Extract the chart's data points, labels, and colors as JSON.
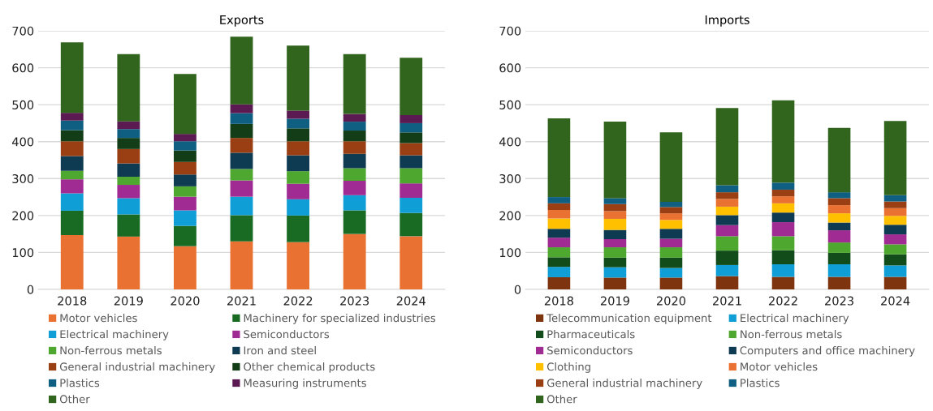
{
  "chart_data": [
    {
      "type": "bar",
      "title": "Exports",
      "stacked": true,
      "grid": "y",
      "legend": "bottom",
      "categories": [
        "2018",
        "2019",
        "2020",
        "2021",
        "2022",
        "2023",
        "2024"
      ],
      "ylim": [
        0,
        700
      ],
      "yticks": [
        0,
        100,
        200,
        300,
        400,
        500,
        600,
        700
      ],
      "series": [
        {
          "name": "Motor vehicles",
          "color": "#e97132",
          "values": [
            147,
            143,
            117,
            130,
            128,
            150,
            144
          ]
        },
        {
          "name": "Machinery for specialized industries",
          "color": "#196b24",
          "values": [
            66,
            60,
            55,
            71,
            72,
            64,
            63
          ]
        },
        {
          "name": "Electrical machinery",
          "color": "#0f9ed5",
          "values": [
            47,
            44,
            42,
            50,
            44,
            41,
            41
          ]
        },
        {
          "name": "Semiconductors",
          "color": "#a02b93",
          "values": [
            38,
            36,
            37,
            44,
            42,
            39,
            39
          ]
        },
        {
          "name": "Non-ferrous metals",
          "color": "#4ea72e",
          "values": [
            23,
            22,
            28,
            31,
            34,
            34,
            41
          ]
        },
        {
          "name": "Iron and steel",
          "color": "#0e3a52",
          "values": [
            40,
            36,
            32,
            44,
            43,
            39,
            35
          ]
        },
        {
          "name": "General industrial machinery",
          "color": "#993f13",
          "values": [
            40,
            39,
            34,
            40,
            38,
            34,
            33
          ]
        },
        {
          "name": "Other chemical products",
          "color": "#123d16",
          "values": [
            30,
            30,
            31,
            38,
            35,
            29,
            29
          ]
        },
        {
          "name": "Plastics",
          "color": "#0f5f82",
          "values": [
            26,
            24,
            25,
            29,
            26,
            24,
            25
          ]
        },
        {
          "name": "Measuring instruments",
          "color": "#5c1a52",
          "values": [
            21,
            21,
            20,
            24,
            22,
            21,
            22
          ]
        },
        {
          "name": "Other",
          "color": "#31641d",
          "values": [
            191,
            182,
            162,
            183,
            176,
            162,
            155
          ]
        }
      ]
    },
    {
      "type": "bar",
      "title": "Imports",
      "stacked": true,
      "grid": "y",
      "legend": "bottom",
      "categories": [
        "2018",
        "2019",
        "2020",
        "2021",
        "2022",
        "2023",
        "2024"
      ],
      "ylim": [
        0,
        700
      ],
      "yticks": [
        0,
        100,
        200,
        300,
        400,
        500,
        600,
        700
      ],
      "series": [
        {
          "name": "Telecommunication equipment",
          "color": "#7f3410",
          "values": [
            33,
            32,
            32,
            36,
            34,
            34,
            34
          ]
        },
        {
          "name": "Electrical machinery",
          "color": "#0f9ed5",
          "values": [
            28,
            28,
            26,
            30,
            34,
            34,
            31
          ]
        },
        {
          "name": "Pharmaceuticals",
          "color": "#124c1a",
          "values": [
            26,
            26,
            28,
            39,
            38,
            31,
            30
          ]
        },
        {
          "name": "Non-ferrous metals",
          "color": "#4ea72e",
          "values": [
            27,
            28,
            28,
            39,
            38,
            28,
            27
          ]
        },
        {
          "name": "Semiconductors",
          "color": "#a02b93",
          "values": [
            26,
            22,
            23,
            30,
            38,
            33,
            27
          ]
        },
        {
          "name": "Computers and office machinery",
          "color": "#0e3a52",
          "values": [
            24,
            25,
            27,
            27,
            26,
            21,
            26
          ]
        },
        {
          "name": "Clothing",
          "color": "#ffc000",
          "values": [
            28,
            30,
            24,
            23,
            25,
            25,
            24
          ]
        },
        {
          "name": "Motor vehicles",
          "color": "#e97132",
          "values": [
            23,
            21,
            18,
            21,
            19,
            22,
            21
          ]
        },
        {
          "name": "General industrial machinery",
          "color": "#993f13",
          "values": [
            18,
            19,
            17,
            18,
            18,
            19,
            18
          ]
        },
        {
          "name": "Plastics",
          "color": "#0f5f82",
          "values": [
            17,
            16,
            14,
            19,
            19,
            16,
            17
          ]
        },
        {
          "name": "Other",
          "color": "#31641d",
          "values": [
            213,
            207,
            188,
            209,
            223,
            174,
            201
          ]
        }
      ]
    }
  ]
}
